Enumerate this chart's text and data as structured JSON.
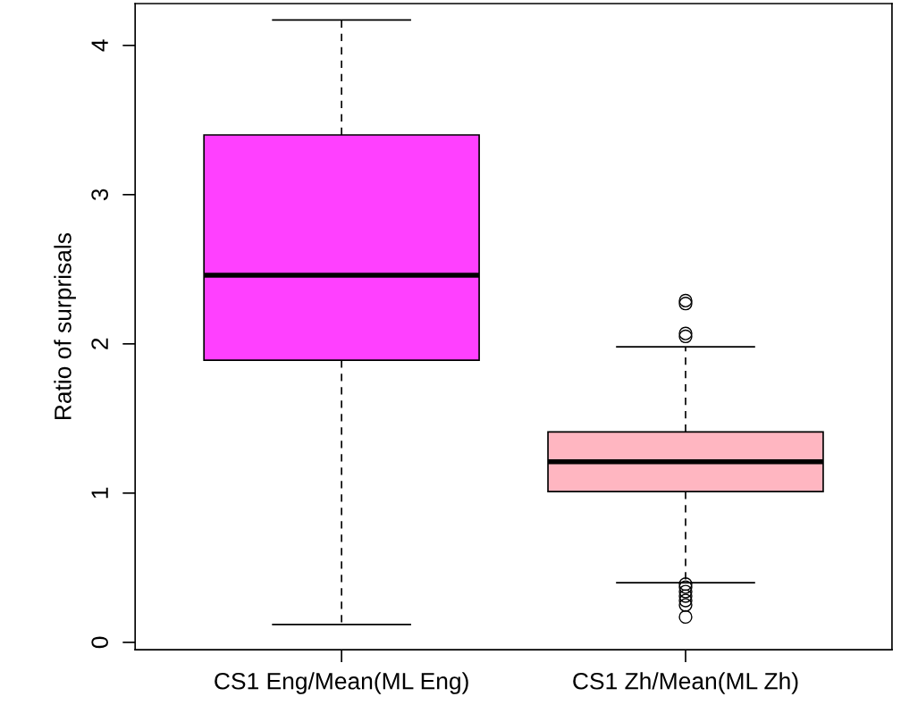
{
  "chart_data": {
    "type": "box",
    "ylabel": "Ratio of surprisals",
    "categories": [
      "CS1 Eng/Mean(ML Eng)",
      "CS1 Zh/Mean(ML Zh)"
    ],
    "colors": [
      "#ff40ff",
      "#ffb6c1"
    ],
    "boxes": [
      {
        "low": 0.12,
        "q1": 1.89,
        "median": 2.46,
        "q3": 3.4,
        "high": 4.17
      },
      {
        "low": 0.4,
        "q1": 1.01,
        "median": 1.21,
        "q3": 1.41,
        "high": 1.98,
        "outliers": [
          2.29,
          2.27,
          2.07,
          2.05,
          0.39,
          0.37,
          0.34,
          0.31,
          0.28,
          0.25,
          0.17
        ]
      }
    ],
    "ylim": [
      -0.05,
      4.28
    ],
    "yticks": [
      0,
      1,
      2,
      3,
      4
    ],
    "grid": false,
    "legend": false
  }
}
